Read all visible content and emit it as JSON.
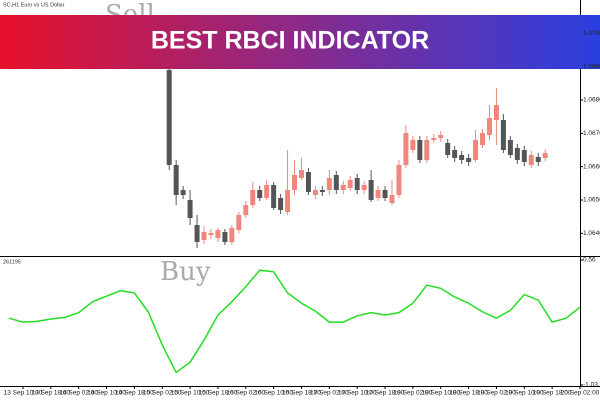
{
  "banner": {
    "title": "BEST RBCI INDICATOR"
  },
  "chart_data": [
    {
      "type": "candlestick",
      "title": "SC,H1 Euro vs US Dollar",
      "annotation": "Sell",
      "up_color": "#f0877c",
      "down_color": "#555555",
      "x": [
        52,
        54,
        56,
        58,
        60,
        62,
        64,
        66,
        68,
        70,
        72,
        74,
        76,
        78,
        80,
        82,
        84,
        86,
        88,
        90,
        92,
        94,
        96,
        98,
        100,
        102,
        104,
        106,
        108,
        110,
        112,
        114,
        116,
        118,
        120,
        122,
        124,
        126,
        128,
        130,
        132,
        134,
        136,
        138,
        140,
        142,
        144,
        146,
        148,
        150,
        152,
        154,
        156,
        158,
        160
      ],
      "open": [
        1.0689,
        1.06605,
        1.0653,
        1.065,
        1.06425,
        1.0638,
        1.06395,
        1.06386,
        1.06404,
        1.06374,
        1.0641,
        1.06455,
        1.06485,
        1.0653,
        1.06506,
        1.06545,
        1.06506,
        1.06464,
        1.0653,
        1.06566,
        1.06584,
        1.06515,
        1.0653,
        1.0653,
        1.06575,
        1.0653,
        1.06536,
        1.06566,
        1.0653,
        1.0656,
        1.06506,
        1.0653,
        1.06491,
        1.06515,
        1.06605,
        1.0665,
        1.0668,
        1.0662,
        1.0668,
        1.06686,
        1.06671,
        1.0665,
        1.06635,
        1.06626,
        1.0662,
        1.06665,
        1.06695,
        1.0674,
        1.0674,
        1.0668,
        1.06656,
        1.0665,
        1.06605,
        1.06629,
        1.06626
      ],
      "high": [
        1.0692,
        1.0662,
        1.06542,
        1.0653,
        1.06455,
        1.06422,
        1.06413,
        1.06416,
        1.06413,
        1.06425,
        1.06464,
        1.06497,
        1.06554,
        1.06542,
        1.0656,
        1.06554,
        1.06518,
        1.0665,
        1.0662,
        1.06626,
        1.06596,
        1.06542,
        1.06542,
        1.0659,
        1.06587,
        1.06557,
        1.06572,
        1.06578,
        1.06557,
        1.0659,
        1.06542,
        1.06542,
        1.0656,
        1.0662,
        1.06725,
        1.06692,
        1.06692,
        1.06692,
        1.06698,
        1.06707,
        1.06683,
        1.06662,
        1.06647,
        1.06638,
        1.0671,
        1.06713,
        1.06785,
        1.06836,
        1.06758,
        1.06692,
        1.06668,
        1.06662,
        1.06647,
        1.06641,
        1.06653
      ],
      "low": [
        1.0659,
        1.06485,
        1.06503,
        1.06425,
        1.06356,
        1.06368,
        1.06383,
        1.06374,
        1.06365,
        1.06365,
        1.06401,
        1.06446,
        1.06476,
        1.06497,
        1.065,
        1.0647,
        1.06458,
        1.06455,
        1.06515,
        1.0656,
        1.06515,
        1.06503,
        1.06512,
        1.06515,
        1.06518,
        1.06518,
        1.06527,
        1.06518,
        1.06518,
        1.06494,
        1.06497,
        1.06497,
        1.06485,
        1.06506,
        1.06596,
        1.06641,
        1.06611,
        1.06611,
        1.06671,
        1.06674,
        1.06626,
        1.06614,
        1.06608,
        1.06602,
        1.06614,
        1.06656,
        1.0668,
        1.06665,
        1.06641,
        1.06626,
        1.06608,
        1.06602,
        1.06596,
        1.06602,
        1.06617
      ],
      "close": [
        1.06605,
        1.06515,
        1.06515,
        1.06446,
        1.06374,
        1.06404,
        1.06401,
        1.0641,
        1.06374,
        1.06416,
        1.06455,
        1.06485,
        1.0653,
        1.06506,
        1.06545,
        1.06476,
        1.0647,
        1.0653,
        1.06575,
        1.0659,
        1.06524,
        1.0653,
        1.06524,
        1.06566,
        1.0653,
        1.06545,
        1.0656,
        1.0653,
        1.06545,
        1.065,
        1.0653,
        1.06506,
        1.06515,
        1.06605,
        1.06701,
        1.0668,
        1.0662,
        1.0668,
        1.06686,
        1.06695,
        1.06635,
        1.06626,
        1.0662,
        1.06614,
        1.0668,
        1.06701,
        1.06746,
        1.06785,
        1.0665,
        1.06635,
        1.0662,
        1.06614,
        1.06635,
        1.06614,
        1.06641
      ],
      "xlim": [
        3.4,
        170
      ],
      "ylim": [
        1.06335,
        1.071
      ],
      "yticks": [
        {
          "value": 1.07,
          "label": "1.0700"
        },
        {
          "value": 1.069,
          "label": "1.0690"
        },
        {
          "value": 1.068,
          "label": "1.0680"
        },
        {
          "value": 1.067,
          "label": "1.0670"
        },
        {
          "value": 1.066,
          "label": "1.0660"
        },
        {
          "value": 1.065,
          "label": "1.0650"
        },
        {
          "value": 1.064,
          "label": "1.0640"
        }
      ]
    },
    {
      "type": "line",
      "title": "261195",
      "annotation": "Buy",
      "color": "#22dd22",
      "x": [
        6,
        10,
        14,
        18,
        22,
        26,
        30,
        34,
        38,
        42,
        46,
        50,
        54,
        58,
        62,
        66,
        70,
        74,
        78,
        82,
        86,
        90,
        94,
        98,
        102,
        106,
        110,
        114,
        118,
        122,
        126,
        130,
        134,
        138,
        142,
        146,
        150,
        154,
        158,
        162,
        166,
        170
      ],
      "values": [
        -0.18,
        -0.23,
        -0.22,
        -0.19,
        -0.17,
        -0.11,
        0.03,
        0.1,
        0.17,
        0.14,
        -0.1,
        -0.52,
        -0.87,
        -0.74,
        -0.46,
        -0.14,
        0.03,
        0.22,
        0.43,
        0.41,
        0.14,
        0.01,
        -0.09,
        -0.23,
        -0.23,
        -0.15,
        -0.11,
        -0.14,
        -0.11,
        0.01,
        0.24,
        0.2,
        0.09,
        0.01,
        -0.1,
        -0.18,
        -0.08,
        0.12,
        0.05,
        -0.23,
        -0.18,
        -0.04
      ],
      "xlim": [
        3.4,
        170
      ],
      "ylim": [
        -1.03,
        0.56
      ],
      "yticks": [
        0.56,
        -1.03
      ],
      "xticks": [
        {
          "value": 10,
          "label": "13 Sep 10:00"
        },
        {
          "value": 18,
          "label": "13 Sep 18:00"
        },
        {
          "value": 26,
          "label": "14 Sep 02:00"
        },
        {
          "value": 34,
          "label": "14 Sep 10:00"
        },
        {
          "value": 42,
          "label": "14 Sep 18:00"
        },
        {
          "value": 50,
          "label": "15 Sep 02:00"
        },
        {
          "value": 58,
          "label": "15 Sep 10:00"
        },
        {
          "value": 66,
          "label": "15 Sep 18:00"
        },
        {
          "value": 74,
          "label": "16 Sep 02:00"
        },
        {
          "value": 82,
          "label": "16 Sep 10:00"
        },
        {
          "value": 90,
          "label": "16 Sep 18:00"
        },
        {
          "value": 98,
          "label": "17 Sep 02:00"
        },
        {
          "value": 106,
          "label": "17 Sep 10:00"
        },
        {
          "value": 114,
          "label": "17 Sep 18:00"
        },
        {
          "value": 122,
          "label": "18 Sep 02:00"
        },
        {
          "value": 130,
          "label": "18 Sep 10:00"
        },
        {
          "value": 138,
          "label": "18 Sep 18:00"
        },
        {
          "value": 146,
          "label": "19 Sep 02:00"
        },
        {
          "value": 154,
          "label": "19 Sep 10:00"
        },
        {
          "value": 162,
          "label": "19 Sep 18:00"
        },
        {
          "value": 170,
          "label": "20 Sep 02:00"
        }
      ]
    }
  ]
}
